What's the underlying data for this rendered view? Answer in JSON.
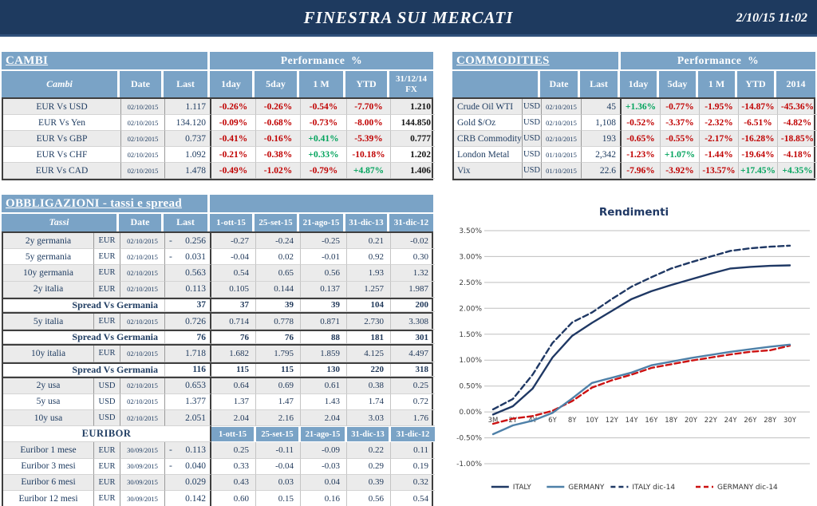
{
  "header": {
    "title": "FINESTRA SUI MERCATI",
    "datetime": "2/10/15 11:02"
  },
  "colors": {
    "topbar": "#1E3A5F",
    "header_blue": "#7AA3C6",
    "row_gray": "#EBEBEB",
    "text_navy": "#1F3C61",
    "negative": "#C00000",
    "positive": "#00A35C",
    "italy_line": "#1F3864",
    "germany_line": "#4E80A8",
    "germany_dic14_line": "#CC1111"
  },
  "cambi": {
    "title": "CAMBI",
    "perf_header": "Performance  %",
    "columns": [
      "Cambi",
      "Date",
      "Last",
      "1day",
      "5day",
      "1 M",
      "YTD",
      "31/12/14\nFX"
    ],
    "rows": [
      {
        "name": "EUR Vs USD",
        "date": "02/10/2015",
        "last": "1.117",
        "perf": [
          "-0.26%",
          "-0.26%",
          "-0.54%",
          "-7.70%"
        ],
        "fx": "1.210"
      },
      {
        "name": "EUR Vs Yen",
        "date": "02/10/2015",
        "last": "134.120",
        "perf": [
          "-0.09%",
          "-0.68%",
          "-0.73%",
          "-8.00%"
        ],
        "fx": "144.850"
      },
      {
        "name": "EUR Vs GBP",
        "date": "02/10/2015",
        "last": "0.737",
        "perf": [
          "-0.41%",
          "-0.16%",
          "+0.41%",
          "-5.39%"
        ],
        "fx": "0.777"
      },
      {
        "name": "EUR Vs CHF",
        "date": "02/10/2015",
        "last": "1.092",
        "perf": [
          "-0.21%",
          "-0.38%",
          "+0.33%",
          "-10.18%"
        ],
        "fx": "1.202"
      },
      {
        "name": "EUR Vs CAD",
        "date": "02/10/2015",
        "last": "1.478",
        "perf": [
          "-0.49%",
          "-1.02%",
          "-0.79%",
          "+4.87%"
        ],
        "fx": "1.406"
      }
    ]
  },
  "commodities": {
    "title": "COMMODITIES",
    "perf_header": "Performance  %",
    "columns": [
      "",
      "Date",
      "Last",
      "1day",
      "5day",
      "1 M",
      "YTD",
      "2014"
    ],
    "rows": [
      {
        "name": "Crude Oil WTI",
        "currency": "USD",
        "date": "02/10/2015",
        "last": "45",
        "perf": [
          "+1.36%",
          "-0.77%",
          "-1.95%",
          "-14.87%",
          "-45.36%"
        ]
      },
      {
        "name": "Gold $/Oz",
        "currency": "USD",
        "date": "02/10/2015",
        "last": "1,108",
        "perf": [
          "-0.52%",
          "-3.37%",
          "-2.32%",
          "-6.51%",
          "-4.82%"
        ]
      },
      {
        "name": "CRB Commodity",
        "currency": "USD",
        "date": "02/10/2015",
        "last": "193",
        "perf": [
          "-0.65%",
          "-0.55%",
          "-2.17%",
          "-16.28%",
          "-18.85%"
        ]
      },
      {
        "name": "London Metal",
        "currency": "USD",
        "date": "01/10/2015",
        "last": "2,342",
        "perf": [
          "-1.23%",
          "+1.07%",
          "-1.44%",
          "-19.64%",
          "-4.18%"
        ]
      },
      {
        "name": "Vix",
        "currency": "USD",
        "date": "01/10/2015",
        "last": "22.6",
        "perf": [
          "-7.96%",
          "-3.92%",
          "-13.57%",
          "+17.45%",
          "+4.35%"
        ]
      }
    ]
  },
  "obbligazioni": {
    "title": "OBBLIGAZIONI - tassi e spread",
    "columns": [
      "Tassi",
      "Date",
      "Last",
      "1-ott-15",
      "25-set-15",
      "21-ago-15",
      "31-dic-13",
      "31-dic-12"
    ],
    "euribor_label": "EURIBOR",
    "euribor_columns": [
      "1-ott-15",
      "25-set-15",
      "21-ago-15",
      "31-dic-13",
      "31-dic-12"
    ],
    "spread_label": "Spread Vs Germania",
    "rows": [
      {
        "type": "rate",
        "name": "2y germania",
        "currency": "EUR",
        "date": "02/10/2015",
        "neg": true,
        "last": "0.256",
        "hist": [
          "-0.27",
          "-0.24",
          "-0.25",
          "0.21",
          "-0.02"
        ],
        "shade": true
      },
      {
        "type": "rate",
        "name": "5y germania",
        "currency": "EUR",
        "date": "02/10/2015",
        "neg": true,
        "last": "0.031",
        "hist": [
          "-0.04",
          "0.02",
          "-0.01",
          "0.92",
          "0.30"
        ],
        "shade": false
      },
      {
        "type": "rate",
        "name": "10y germania",
        "currency": "EUR",
        "date": "02/10/2015",
        "neg": false,
        "last": "0.563",
        "hist": [
          "0.54",
          "0.65",
          "0.56",
          "1.93",
          "1.32"
        ],
        "shade": true
      },
      {
        "type": "rate",
        "name": "2y italia",
        "currency": "EUR",
        "date": "02/10/2015",
        "neg": false,
        "last": "0.113",
        "hist": [
          "0.105",
          "0.144",
          "0.137",
          "1.257",
          "1.987"
        ],
        "shade": true
      },
      {
        "type": "spread",
        "last": "37",
        "hist": [
          "37",
          "39",
          "39",
          "104",
          "200"
        ]
      },
      {
        "type": "rate",
        "name": "5y italia",
        "currency": "EUR",
        "date": "02/10/2015",
        "neg": false,
        "last": "0.726",
        "hist": [
          "0.714",
          "0.778",
          "0.871",
          "2.730",
          "3.308"
        ],
        "shade": true
      },
      {
        "type": "spread",
        "last": "76",
        "hist": [
          "76",
          "76",
          "88",
          "181",
          "301"
        ]
      },
      {
        "type": "rate",
        "name": "10y italia",
        "currency": "EUR",
        "date": "02/10/2015",
        "neg": false,
        "last": "1.718",
        "hist": [
          "1.682",
          "1.795",
          "1.859",
          "4.125",
          "4.497"
        ],
        "shade": true
      },
      {
        "type": "spread",
        "last": "116",
        "hist": [
          "115",
          "115",
          "130",
          "220",
          "318"
        ]
      },
      {
        "type": "rate",
        "name": "2y usa",
        "currency": "USD",
        "date": "02/10/2015",
        "neg": false,
        "last": "0.653",
        "hist": [
          "0.64",
          "0.69",
          "0.61",
          "0.38",
          "0.25"
        ],
        "shade": true
      },
      {
        "type": "rate",
        "name": "5y usa",
        "currency": "USD",
        "date": "02/10/2015",
        "neg": false,
        "last": "1.377",
        "hist": [
          "1.37",
          "1.47",
          "1.43",
          "1.74",
          "0.72"
        ],
        "shade": false
      },
      {
        "type": "rate",
        "name": "10y usa",
        "currency": "USD",
        "date": "02/10/2015",
        "neg": false,
        "last": "2.051",
        "hist": [
          "2.04",
          "2.16",
          "2.04",
          "3.03",
          "1.76"
        ],
        "shade": true
      },
      {
        "type": "subheader"
      },
      {
        "type": "rate",
        "name": "Euribor 1 mese",
        "currency": "EUR",
        "date": "30/09/2015",
        "neg": true,
        "last": "0.113",
        "hist": [
          "0.25",
          "-0.11",
          "-0.09",
          "0.22",
          "0.11"
        ],
        "shade": true
      },
      {
        "type": "rate",
        "name": "Euribor 3 mesi",
        "currency": "EUR",
        "date": "30/09/2015",
        "neg": true,
        "last": "0.040",
        "hist": [
          "0.33",
          "-0.04",
          "-0.03",
          "0.29",
          "0.19"
        ],
        "shade": false
      },
      {
        "type": "rate",
        "name": "Euribor 6 mesi",
        "currency": "EUR",
        "date": "30/09/2015",
        "neg": false,
        "last": "0.029",
        "hist": [
          "0.43",
          "0.03",
          "0.04",
          "0.39",
          "0.32"
        ],
        "shade": true
      },
      {
        "type": "rate",
        "name": "Euribor 12 mesi",
        "currency": "EUR",
        "date": "30/09/2015",
        "neg": false,
        "last": "0.142",
        "hist": [
          "0.60",
          "0.15",
          "0.16",
          "0.56",
          "0.54"
        ],
        "shade": false
      }
    ]
  },
  "chart_data": {
    "type": "line",
    "title": "Rendimenti",
    "categories": [
      "3M",
      "2Y",
      "4Y",
      "6Y",
      "8Y",
      "10Y",
      "12Y",
      "14Y",
      "16Y",
      "18Y",
      "20Y",
      "22Y",
      "24Y",
      "26Y",
      "28Y",
      "30Y"
    ],
    "ylim": [
      -1.0,
      3.5
    ],
    "ytick_step": 0.5,
    "grid": true,
    "legend_position": "bottom",
    "series": [
      {
        "name": "ITALY",
        "color": "#1F3864",
        "dashed": false,
        "values": [
          -0.05,
          0.11,
          0.45,
          1.05,
          1.47,
          1.72,
          1.95,
          2.18,
          2.33,
          2.45,
          2.56,
          2.67,
          2.77,
          2.8,
          2.82,
          2.83
        ]
      },
      {
        "name": "GERMANY",
        "color": "#4E80A8",
        "dashed": false,
        "values": [
          -0.43,
          -0.26,
          -0.17,
          -0.02,
          0.26,
          0.56,
          0.66,
          0.76,
          0.9,
          0.97,
          1.04,
          1.1,
          1.16,
          1.21,
          1.26,
          1.3
        ]
      },
      {
        "name": "ITALY dic-14",
        "color": "#1F3864",
        "dashed": true,
        "values": [
          0.05,
          0.25,
          0.72,
          1.33,
          1.73,
          1.92,
          2.18,
          2.42,
          2.6,
          2.77,
          2.89,
          3.0,
          3.11,
          3.16,
          3.19,
          3.21
        ]
      },
      {
        "name": "GERMANY dic-14",
        "color": "#CC1111",
        "dashed": true,
        "values": [
          -0.23,
          -0.13,
          -0.08,
          0.02,
          0.21,
          0.47,
          0.61,
          0.72,
          0.85,
          0.92,
          0.99,
          1.05,
          1.11,
          1.16,
          1.19,
          1.28
        ]
      }
    ]
  }
}
